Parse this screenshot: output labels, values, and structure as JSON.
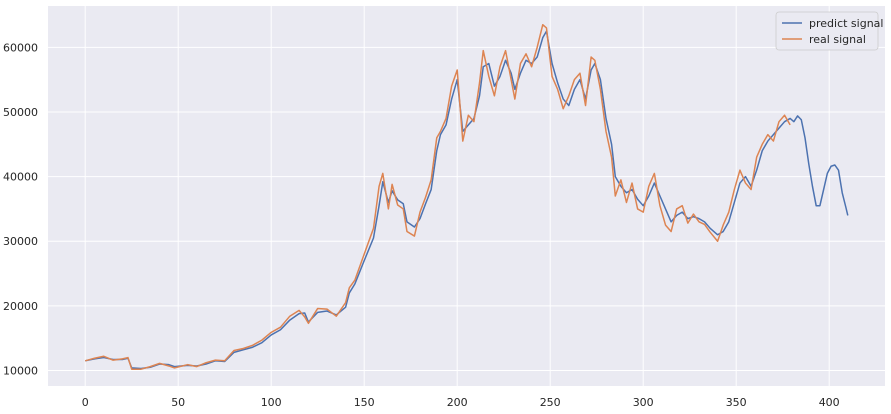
{
  "chart_data": {
    "type": "line",
    "title": "",
    "xlabel": "",
    "ylabel": "",
    "xlim": [
      -20,
      430
    ],
    "ylim": [
      7600,
      66400
    ],
    "xticks": [
      0,
      50,
      100,
      150,
      200,
      250,
      300,
      350,
      400
    ],
    "yticks": [
      10000,
      20000,
      30000,
      40000,
      50000,
      60000
    ],
    "grid": true,
    "legend_position": "top-right",
    "colors": {
      "background": "#eaeaf2",
      "grid": "#ffffff",
      "predict": "#4c72b0",
      "real": "#dd8452"
    },
    "series": [
      {
        "name": "predict signal",
        "points": [
          [
            0,
            11500
          ],
          [
            5,
            11800
          ],
          [
            10,
            12000
          ],
          [
            15,
            11700
          ],
          [
            20,
            11700
          ],
          [
            23,
            11900
          ],
          [
            25,
            10400
          ],
          [
            30,
            10300
          ],
          [
            35,
            10500
          ],
          [
            40,
            11000
          ],
          [
            45,
            10900
          ],
          [
            48,
            10600
          ],
          [
            55,
            10800
          ],
          [
            60,
            10700
          ],
          [
            65,
            11000
          ],
          [
            70,
            11500
          ],
          [
            75,
            11400
          ],
          [
            80,
            12800
          ],
          [
            85,
            13200
          ],
          [
            90,
            13600
          ],
          [
            95,
            14300
          ],
          [
            100,
            15500
          ],
          [
            105,
            16300
          ],
          [
            110,
            17800
          ],
          [
            115,
            18800
          ],
          [
            118,
            18900
          ],
          [
            120,
            17500
          ],
          [
            125,
            19000
          ],
          [
            130,
            19200
          ],
          [
            135,
            18600
          ],
          [
            140,
            19800
          ],
          [
            142,
            22000
          ],
          [
            145,
            23400
          ],
          [
            150,
            27000
          ],
          [
            155,
            30500
          ],
          [
            158,
            35500
          ],
          [
            160,
            39200
          ],
          [
            163,
            36000
          ],
          [
            165,
            37800
          ],
          [
            168,
            36400
          ],
          [
            171,
            35800
          ],
          [
            173,
            33000
          ],
          [
            177,
            32200
          ],
          [
            180,
            33500
          ],
          [
            183,
            35800
          ],
          [
            186,
            38000
          ],
          [
            189,
            44000
          ],
          [
            191,
            46500
          ],
          [
            194,
            48000
          ],
          [
            197,
            52000
          ],
          [
            200,
            55000
          ],
          [
            203,
            47000
          ],
          [
            206,
            48000
          ],
          [
            209,
            49000
          ],
          [
            212,
            52500
          ],
          [
            214,
            57000
          ],
          [
            217,
            57500
          ],
          [
            220,
            54000
          ],
          [
            223,
            55500
          ],
          [
            226,
            58000
          ],
          [
            229,
            56000
          ],
          [
            231,
            53500
          ],
          [
            234,
            56000
          ],
          [
            237,
            58000
          ],
          [
            240,
            57500
          ],
          [
            243,
            58500
          ],
          [
            246,
            61500
          ],
          [
            248,
            62500
          ],
          [
            251,
            57500
          ],
          [
            254,
            54500
          ],
          [
            257,
            52000
          ],
          [
            260,
            51000
          ],
          [
            263,
            53500
          ],
          [
            266,
            55000
          ],
          [
            269,
            52000
          ],
          [
            272,
            56500
          ],
          [
            274,
            57500
          ],
          [
            277,
            55000
          ],
          [
            280,
            49000
          ],
          [
            283,
            45000
          ],
          [
            285,
            40000
          ],
          [
            288,
            38500
          ],
          [
            291,
            37500
          ],
          [
            294,
            38000
          ],
          [
            297,
            36500
          ],
          [
            300,
            35500
          ],
          [
            303,
            37000
          ],
          [
            306,
            39000
          ],
          [
            309,
            37000
          ],
          [
            312,
            35000
          ],
          [
            315,
            33000
          ],
          [
            318,
            34000
          ],
          [
            321,
            34500
          ],
          [
            324,
            33500
          ],
          [
            327,
            33800
          ],
          [
            330,
            33500
          ],
          [
            333,
            33000
          ],
          [
            336,
            32000
          ],
          [
            340,
            31000
          ],
          [
            343,
            31500
          ],
          [
            346,
            33000
          ],
          [
            349,
            36000
          ],
          [
            352,
            39000
          ],
          [
            355,
            40000
          ],
          [
            358,
            38500
          ],
          [
            361,
            41000
          ],
          [
            364,
            44000
          ],
          [
            367,
            45500
          ],
          [
            370,
            46500
          ],
          [
            373,
            47500
          ],
          [
            376,
            48500
          ],
          [
            379,
            49000
          ],
          [
            381,
            48500
          ],
          [
            383,
            49400
          ],
          [
            385,
            48800
          ],
          [
            387,
            46000
          ],
          [
            389,
            42000
          ],
          [
            391,
            38500
          ],
          [
            393,
            35500
          ],
          [
            395,
            35500
          ],
          [
            397,
            38000
          ],
          [
            399,
            40500
          ],
          [
            401,
            41600
          ],
          [
            403,
            41800
          ],
          [
            405,
            41000
          ],
          [
            407,
            37500
          ],
          [
            409,
            35200
          ],
          [
            410,
            34000
          ]
        ]
      },
      {
        "name": "real signal",
        "points": [
          [
            0,
            11500
          ],
          [
            5,
            11900
          ],
          [
            10,
            12200
          ],
          [
            15,
            11600
          ],
          [
            20,
            11800
          ],
          [
            23,
            12000
          ],
          [
            25,
            10200
          ],
          [
            30,
            10200
          ],
          [
            35,
            10600
          ],
          [
            40,
            11100
          ],
          [
            45,
            10700
          ],
          [
            48,
            10400
          ],
          [
            55,
            10900
          ],
          [
            60,
            10600
          ],
          [
            65,
            11200
          ],
          [
            70,
            11600
          ],
          [
            75,
            11500
          ],
          [
            80,
            13100
          ],
          [
            85,
            13400
          ],
          [
            90,
            13900
          ],
          [
            95,
            14700
          ],
          [
            100,
            15900
          ],
          [
            105,
            16700
          ],
          [
            110,
            18400
          ],
          [
            115,
            19300
          ],
          [
            118,
            18300
          ],
          [
            120,
            17300
          ],
          [
            125,
            19600
          ],
          [
            130,
            19500
          ],
          [
            135,
            18400
          ],
          [
            140,
            20500
          ],
          [
            142,
            22800
          ],
          [
            145,
            24000
          ],
          [
            150,
            28000
          ],
          [
            155,
            32000
          ],
          [
            158,
            38500
          ],
          [
            160,
            40500
          ],
          [
            163,
            35000
          ],
          [
            165,
            38800
          ],
          [
            168,
            35600
          ],
          [
            171,
            35000
          ],
          [
            173,
            31500
          ],
          [
            177,
            30800
          ],
          [
            180,
            34500
          ],
          [
            183,
            36800
          ],
          [
            186,
            39500
          ],
          [
            189,
            46000
          ],
          [
            191,
            47000
          ],
          [
            194,
            49000
          ],
          [
            197,
            54000
          ],
          [
            200,
            56500
          ],
          [
            203,
            45500
          ],
          [
            206,
            49500
          ],
          [
            209,
            48500
          ],
          [
            212,
            54500
          ],
          [
            214,
            59500
          ],
          [
            217,
            55500
          ],
          [
            220,
            52500
          ],
          [
            223,
            57000
          ],
          [
            226,
            59500
          ],
          [
            229,
            55000
          ],
          [
            231,
            52000
          ],
          [
            234,
            57500
          ],
          [
            237,
            59000
          ],
          [
            240,
            57000
          ],
          [
            243,
            60000
          ],
          [
            246,
            63500
          ],
          [
            248,
            63000
          ],
          [
            251,
            55500
          ],
          [
            254,
            53500
          ],
          [
            257,
            50500
          ],
          [
            260,
            52500
          ],
          [
            263,
            55000
          ],
          [
            266,
            56000
          ],
          [
            269,
            51000
          ],
          [
            272,
            58500
          ],
          [
            274,
            58000
          ],
          [
            277,
            53500
          ],
          [
            280,
            47000
          ],
          [
            283,
            43000
          ],
          [
            285,
            37000
          ],
          [
            288,
            39500
          ],
          [
            291,
            36000
          ],
          [
            294,
            39000
          ],
          [
            297,
            35000
          ],
          [
            300,
            34500
          ],
          [
            303,
            38500
          ],
          [
            306,
            40500
          ],
          [
            309,
            35500
          ],
          [
            312,
            32500
          ],
          [
            315,
            31500
          ],
          [
            318,
            35000
          ],
          [
            321,
            35500
          ],
          [
            324,
            32800
          ],
          [
            327,
            34200
          ],
          [
            330,
            33000
          ],
          [
            333,
            32600
          ],
          [
            336,
            31400
          ],
          [
            340,
            30000
          ],
          [
            343,
            32500
          ],
          [
            346,
            34500
          ],
          [
            349,
            38000
          ],
          [
            352,
            41000
          ],
          [
            355,
            39000
          ],
          [
            358,
            38000
          ],
          [
            361,
            43000
          ],
          [
            364,
            45000
          ],
          [
            367,
            46500
          ],
          [
            370,
            45500
          ],
          [
            373,
            48500
          ],
          [
            376,
            49500
          ],
          [
            379,
            48000
          ]
        ]
      }
    ]
  }
}
